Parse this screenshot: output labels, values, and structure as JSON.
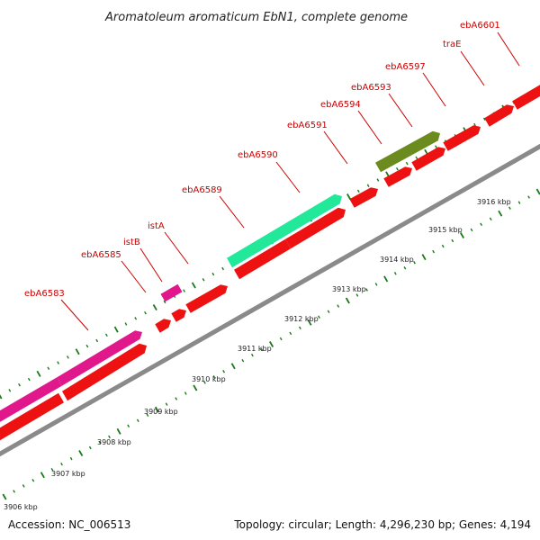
{
  "title": "Aromatoleum aromaticum EbN1, complete genome",
  "footer": {
    "accession": "Accession: NC_006513",
    "topology": "Topology: circular; Length: 4,296,230 bp; Genes: 4,194"
  },
  "colors": {
    "cds": "#ee1111",
    "leader": "#cc0000",
    "backbone": "#8a8a8a",
    "ticks": "#1a7a1a",
    "insertion": "#e0188c",
    "green_gene": "#22e89a",
    "olive_gene": "#6b8b1f"
  },
  "kbp_ticks": [
    "3906 kbp",
    "3907 kbp",
    "3908 kbp",
    "3909 kbp",
    "3910 kbp",
    "3911 kbp",
    "3912 kbp",
    "3913 kbp",
    "3914 kbp",
    "3915 kbp",
    "3916 kbp"
  ],
  "gene_labels": [
    "ebA6583",
    "ebA6585",
    "istB",
    "istA",
    "ebA6589",
    "ebA6590",
    "ebA6591",
    "ebA6594",
    "ebA6593",
    "ebA6597",
    "traE",
    "ebA6601"
  ]
}
